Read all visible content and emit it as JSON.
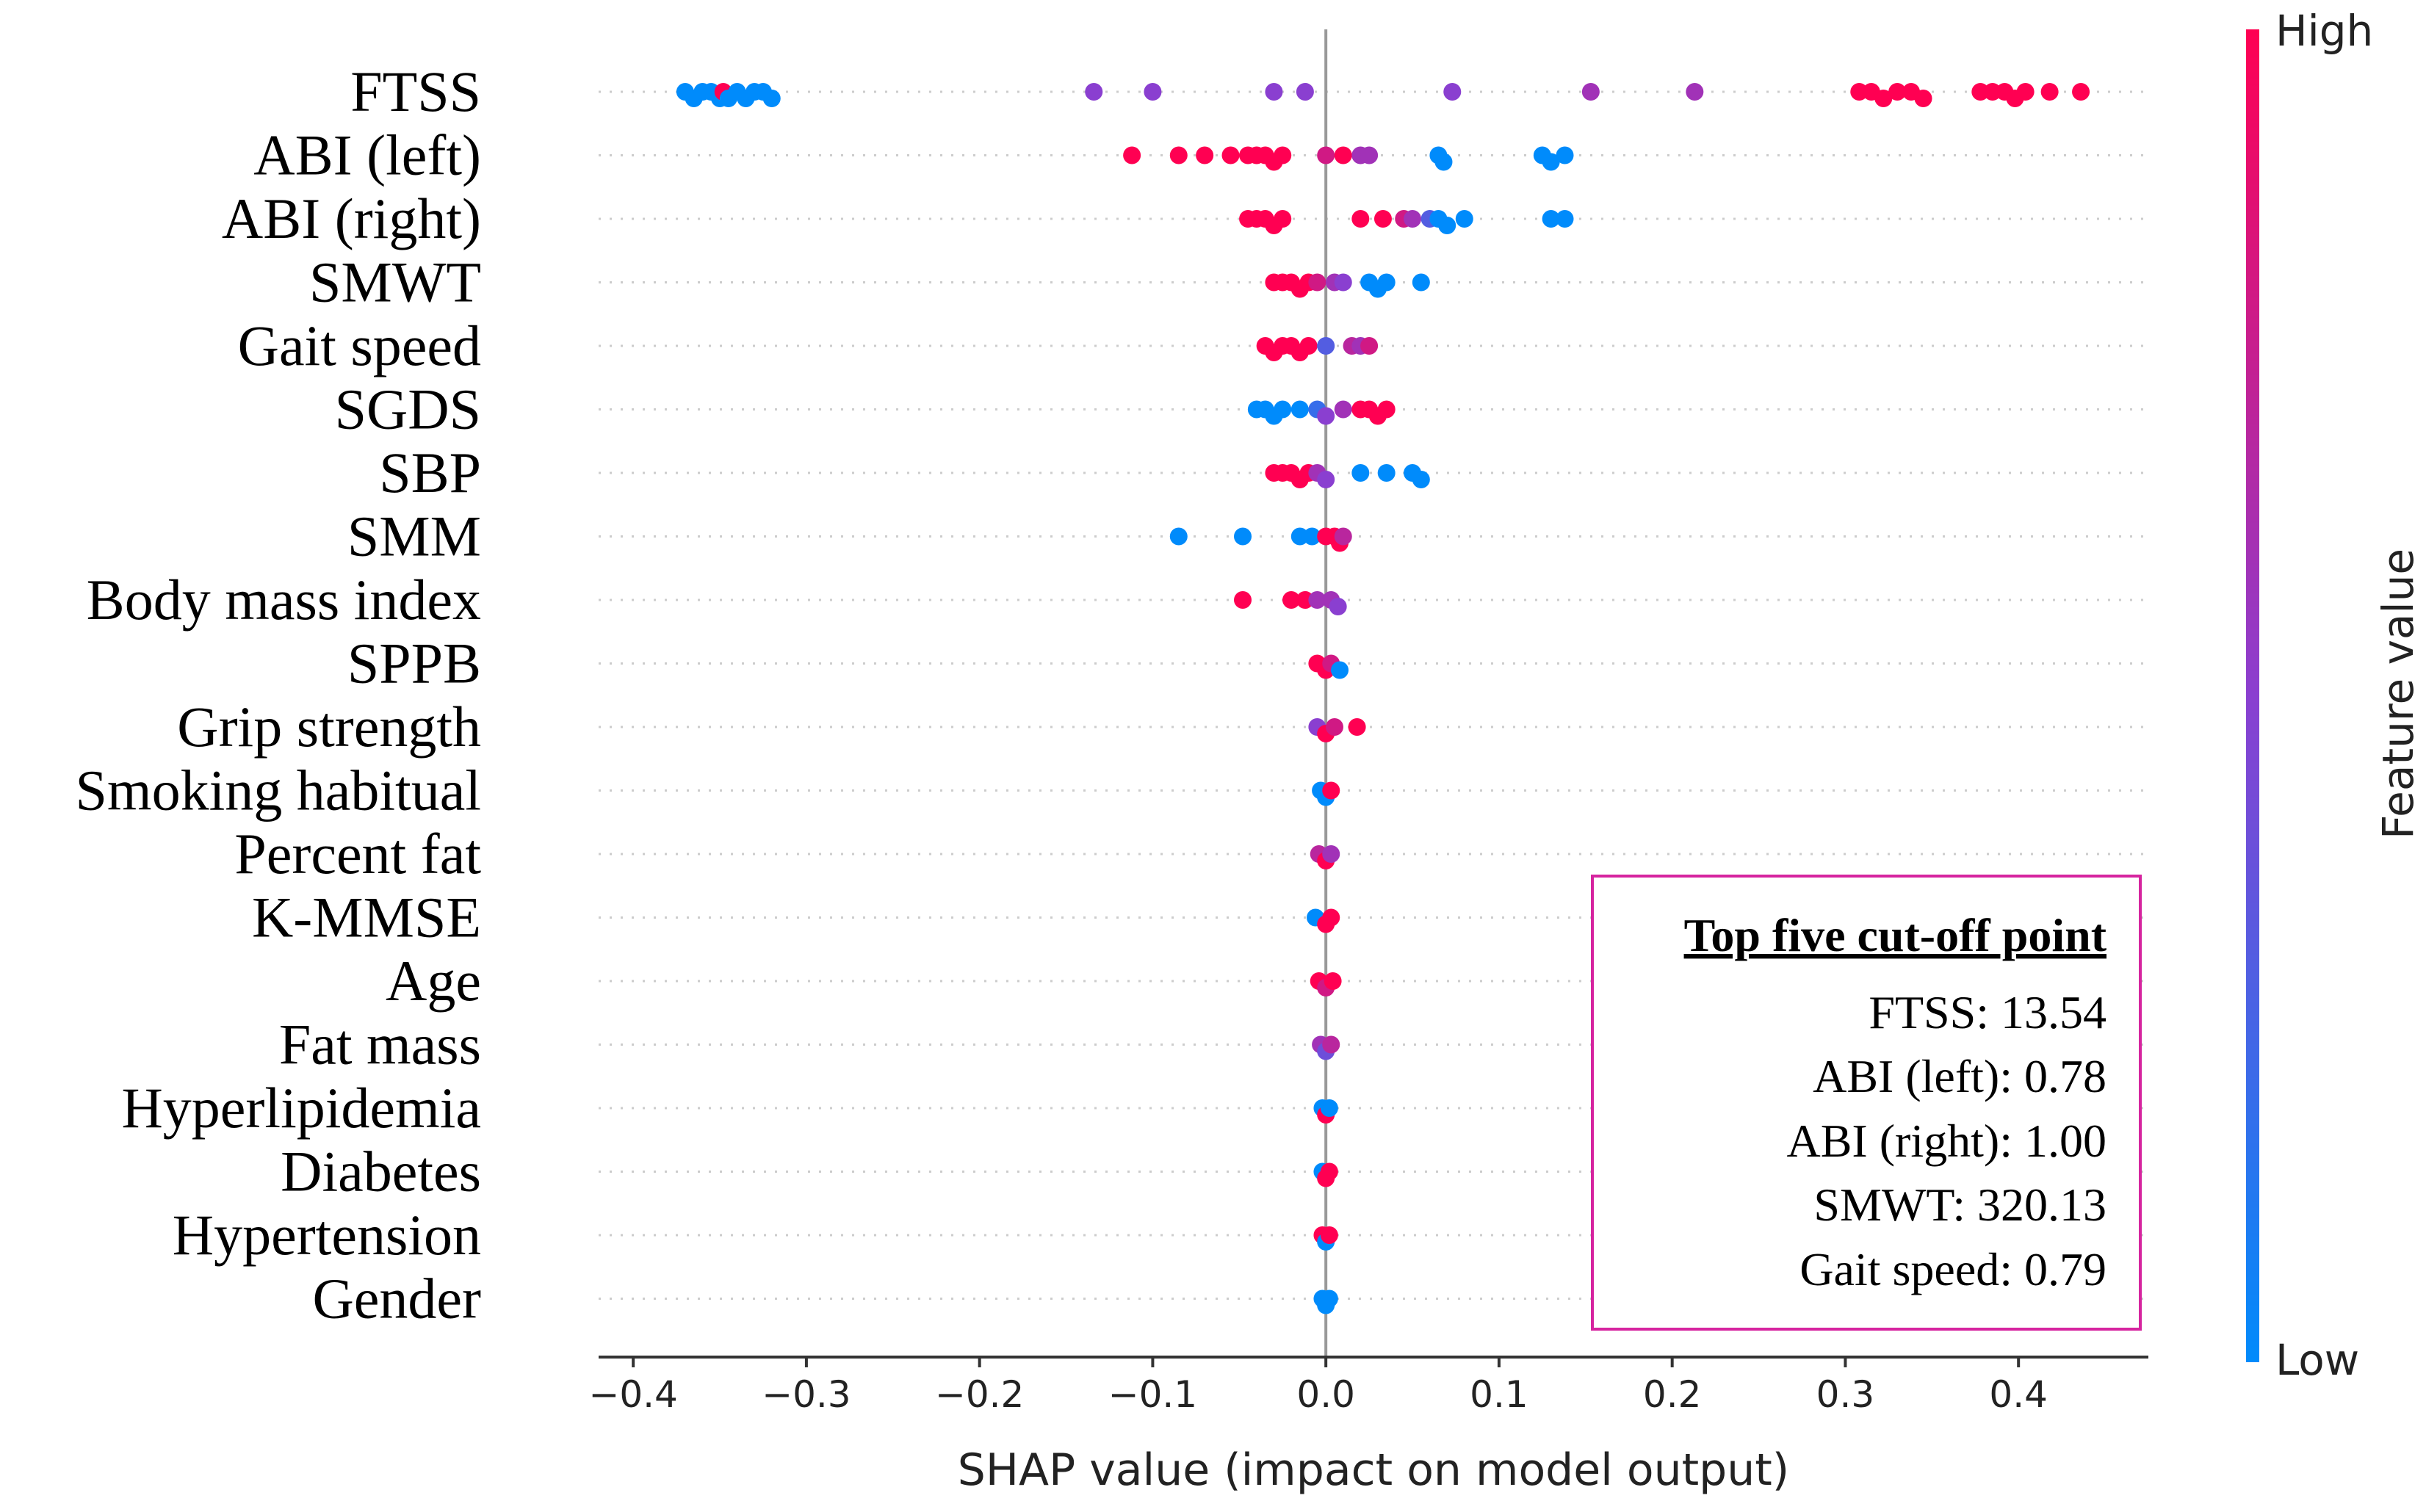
{
  "chart_data": {
    "type": "scatter",
    "subtype": "shap-beeswarm",
    "xlabel": "SHAP value (impact on model output)",
    "xlim": [
      -0.42,
      0.475
    ],
    "xticks": [
      -0.4,
      -0.3,
      -0.2,
      -0.1,
      0.0,
      0.1,
      0.2,
      0.3,
      0.4
    ],
    "xtick_labels": [
      "−0.4",
      "−0.3",
      "−0.2",
      "−0.1",
      "0.0",
      "0.1",
      "0.2",
      "0.3",
      "0.4"
    ],
    "colorbar": {
      "label": "Feature value",
      "high_label": "High",
      "low_label": "Low",
      "high_color": "#ff0052",
      "low_color": "#008bfb"
    },
    "features": [
      {
        "name": "FTSS",
        "points": [
          [
            -0.37,
            0
          ],
          [
            -0.365,
            0
          ],
          [
            -0.36,
            0
          ],
          [
            -0.355,
            0
          ],
          [
            -0.35,
            0
          ],
          [
            -0.348,
            1
          ],
          [
            -0.345,
            0
          ],
          [
            -0.34,
            0
          ],
          [
            -0.335,
            0
          ],
          [
            -0.33,
            0
          ],
          [
            -0.325,
            0
          ],
          [
            -0.32,
            0
          ],
          [
            -0.134,
            0.5
          ],
          [
            -0.1,
            0.5
          ],
          [
            -0.03,
            0.5
          ],
          [
            -0.012,
            0.5
          ],
          [
            0.073,
            0.5
          ],
          [
            0.153,
            0.6
          ],
          [
            0.213,
            0.6
          ],
          [
            0.308,
            1
          ],
          [
            0.315,
            1
          ],
          [
            0.322,
            1
          ],
          [
            0.33,
            1
          ],
          [
            0.338,
            1
          ],
          [
            0.345,
            1
          ],
          [
            0.378,
            1
          ],
          [
            0.385,
            1
          ],
          [
            0.392,
            1
          ],
          [
            0.398,
            1
          ],
          [
            0.404,
            1
          ],
          [
            0.418,
            1
          ],
          [
            0.436,
            1
          ]
        ]
      },
      {
        "name": "ABI (left)",
        "points": [
          [
            -0.112,
            1
          ],
          [
            -0.085,
            1
          ],
          [
            -0.07,
            1
          ],
          [
            -0.055,
            1
          ],
          [
            -0.045,
            1
          ],
          [
            -0.04,
            1
          ],
          [
            -0.035,
            1
          ],
          [
            -0.03,
            1
          ],
          [
            -0.025,
            1
          ],
          [
            0.0,
            0.8
          ],
          [
            0.01,
            1
          ],
          [
            0.02,
            0.6
          ],
          [
            0.025,
            0.6
          ],
          [
            0.065,
            0
          ],
          [
            0.068,
            0
          ],
          [
            0.125,
            0
          ],
          [
            0.13,
            0
          ],
          [
            0.138,
            0
          ]
        ]
      },
      {
        "name": "ABI (right)",
        "points": [
          [
            -0.045,
            1
          ],
          [
            -0.04,
            1
          ],
          [
            -0.035,
            1
          ],
          [
            -0.03,
            1
          ],
          [
            -0.025,
            1
          ],
          [
            0.02,
            1
          ],
          [
            0.033,
            1
          ],
          [
            0.045,
            0.8
          ],
          [
            0.05,
            0.6
          ],
          [
            0.06,
            0.3
          ],
          [
            0.065,
            0
          ],
          [
            0.07,
            0
          ],
          [
            0.08,
            0
          ],
          [
            0.13,
            0
          ],
          [
            0.138,
            0
          ]
        ]
      },
      {
        "name": "SMWT",
        "points": [
          [
            -0.03,
            1
          ],
          [
            -0.025,
            1
          ],
          [
            -0.02,
            1
          ],
          [
            -0.015,
            1
          ],
          [
            -0.01,
            1
          ],
          [
            -0.005,
            0.8
          ],
          [
            0.005,
            0.6
          ],
          [
            0.01,
            0.5
          ],
          [
            0.025,
            0
          ],
          [
            0.03,
            0
          ],
          [
            0.035,
            0
          ],
          [
            0.055,
            0
          ]
        ]
      },
      {
        "name": "Gait speed",
        "points": [
          [
            -0.035,
            1
          ],
          [
            -0.03,
            1
          ],
          [
            -0.025,
            1
          ],
          [
            -0.02,
            1
          ],
          [
            -0.015,
            1
          ],
          [
            -0.01,
            1
          ],
          [
            0.0,
            0.3
          ],
          [
            0.015,
            0.7
          ],
          [
            0.02,
            0.6
          ],
          [
            0.025,
            0.8
          ]
        ]
      },
      {
        "name": "SGDS",
        "points": [
          [
            -0.04,
            0
          ],
          [
            -0.035,
            0
          ],
          [
            -0.03,
            0
          ],
          [
            -0.025,
            0
          ],
          [
            -0.015,
            0
          ],
          [
            -0.005,
            0.2
          ],
          [
            0.0,
            0.5
          ],
          [
            0.01,
            0.6
          ],
          [
            0.02,
            1
          ],
          [
            0.025,
            1
          ],
          [
            0.03,
            1
          ],
          [
            0.035,
            1
          ]
        ]
      },
      {
        "name": "SBP",
        "points": [
          [
            -0.03,
            1
          ],
          [
            -0.025,
            1
          ],
          [
            -0.02,
            1
          ],
          [
            -0.015,
            1
          ],
          [
            -0.01,
            1
          ],
          [
            -0.005,
            0.6
          ],
          [
            0.0,
            0.5
          ],
          [
            0.02,
            0
          ],
          [
            0.035,
            0
          ],
          [
            0.05,
            0
          ],
          [
            0.055,
            0
          ]
        ]
      },
      {
        "name": "SMM",
        "points": [
          [
            -0.085,
            0
          ],
          [
            -0.048,
            0
          ],
          [
            -0.015,
            0
          ],
          [
            -0.008,
            0
          ],
          [
            0.0,
            1
          ],
          [
            0.005,
            1
          ],
          [
            0.008,
            1
          ],
          [
            0.01,
            0.7
          ]
        ]
      },
      {
        "name": "Body mass index",
        "points": [
          [
            -0.048,
            1
          ],
          [
            -0.02,
            1
          ],
          [
            -0.012,
            1
          ],
          [
            -0.005,
            0.6
          ],
          [
            0.003,
            0.6
          ],
          [
            0.007,
            0.5
          ]
        ]
      },
      {
        "name": "SPPB",
        "points": [
          [
            -0.005,
            1
          ],
          [
            0.0,
            1
          ],
          [
            0.003,
            0.8
          ],
          [
            0.008,
            0
          ]
        ]
      },
      {
        "name": "Grip strength",
        "points": [
          [
            -0.005,
            0.5
          ],
          [
            0.0,
            1
          ],
          [
            0.005,
            0.8
          ],
          [
            0.018,
            1
          ]
        ]
      },
      {
        "name": "Smoking habitual",
        "points": [
          [
            -0.003,
            0
          ],
          [
            0.0,
            0
          ],
          [
            0.003,
            1
          ]
        ]
      },
      {
        "name": "Percent fat",
        "points": [
          [
            -0.004,
            0.7
          ],
          [
            0.0,
            1
          ],
          [
            0.003,
            0.6
          ]
        ]
      },
      {
        "name": "K-MMSE",
        "points": [
          [
            -0.006,
            0
          ],
          [
            0.0,
            1
          ],
          [
            0.003,
            1
          ]
        ]
      },
      {
        "name": "Age",
        "points": [
          [
            -0.004,
            1
          ],
          [
            0.0,
            0.8
          ],
          [
            0.004,
            1
          ]
        ]
      },
      {
        "name": "Fat mass",
        "points": [
          [
            -0.003,
            0.6
          ],
          [
            0.0,
            0.4
          ],
          [
            0.003,
            0.7
          ]
        ]
      },
      {
        "name": "Hyperlipidemia",
        "points": [
          [
            -0.002,
            0
          ],
          [
            0.0,
            1
          ],
          [
            0.002,
            0
          ]
        ]
      },
      {
        "name": "Diabetes",
        "points": [
          [
            -0.002,
            0
          ],
          [
            0.0,
            1
          ],
          [
            0.002,
            1
          ]
        ]
      },
      {
        "name": "Hypertension",
        "points": [
          [
            -0.002,
            1
          ],
          [
            0.0,
            0
          ],
          [
            0.002,
            1
          ]
        ]
      },
      {
        "name": "Gender",
        "points": [
          [
            -0.002,
            0
          ],
          [
            0.0,
            0
          ],
          [
            0.002,
            0
          ]
        ]
      }
    ],
    "annotation_box": {
      "title": "Top  five cut-off point",
      "lines": [
        "FTSS: 13.54",
        "ABI (left): 0.78",
        "ABI (right): 1.00",
        "SMWT: 320.13",
        "Gait speed: 0.79"
      ],
      "border_color": "#d6249f"
    }
  }
}
